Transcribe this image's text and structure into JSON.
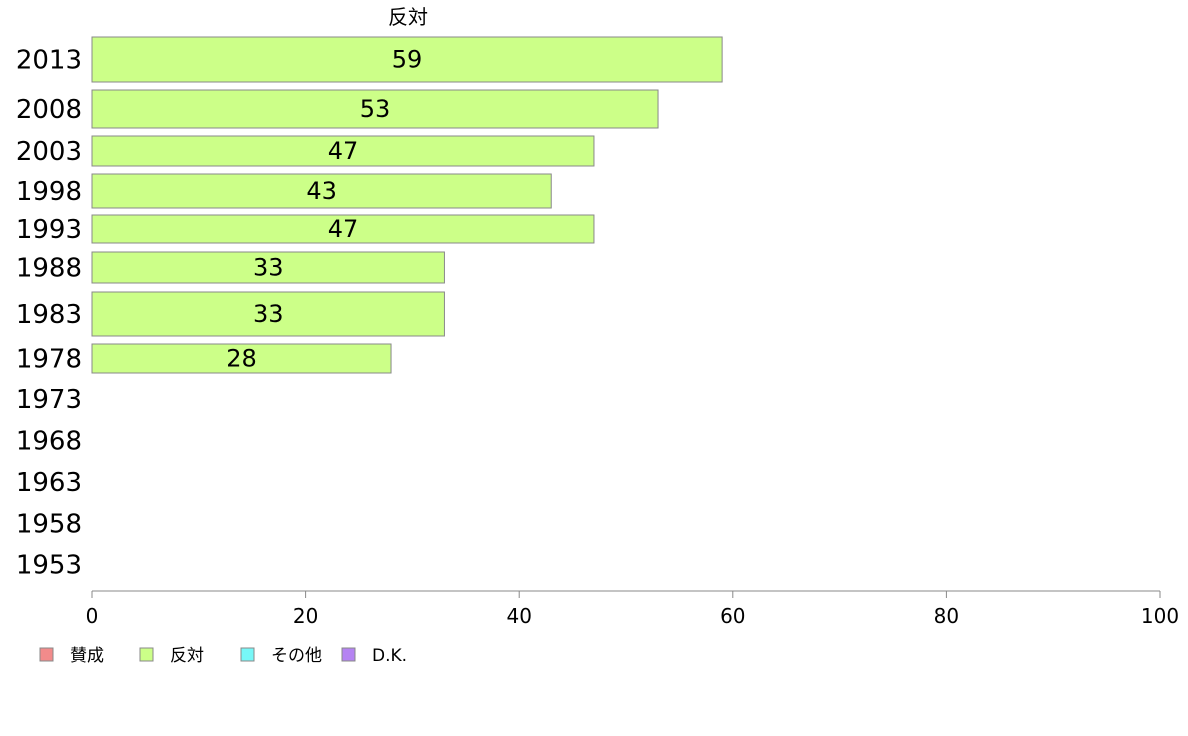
{
  "chart_data": {
    "type": "bar",
    "orientation": "horizontal",
    "series_name": "反対",
    "categories": [
      "2013",
      "2008",
      "2003",
      "1998",
      "1993",
      "1988",
      "1983",
      "1978",
      "1973",
      "1968",
      "1963",
      "1958",
      "1953"
    ],
    "values": [
      59,
      53,
      47,
      43,
      47,
      33,
      33,
      28,
      null,
      null,
      null,
      null,
      null
    ],
    "data_labels": [
      "59",
      "53",
      "47",
      "43",
      "47",
      "33",
      "33",
      "28",
      "",
      "",
      "",
      "",
      ""
    ],
    "xticks": [
      "0",
      "20",
      "40",
      "60",
      "80",
      "100"
    ],
    "xlim": [
      0,
      100
    ],
    "grid": false,
    "legend_position": "bottom-left",
    "legend": [
      {
        "label": "賛成",
        "color": "#f28b8b"
      },
      {
        "label": "反対",
        "color": "#ccff88"
      },
      {
        "label": "その他",
        "color": "#77f7f7"
      },
      {
        "label": "D.K.",
        "color": "#b583f2"
      }
    ],
    "bar_color": "#ccff88"
  }
}
